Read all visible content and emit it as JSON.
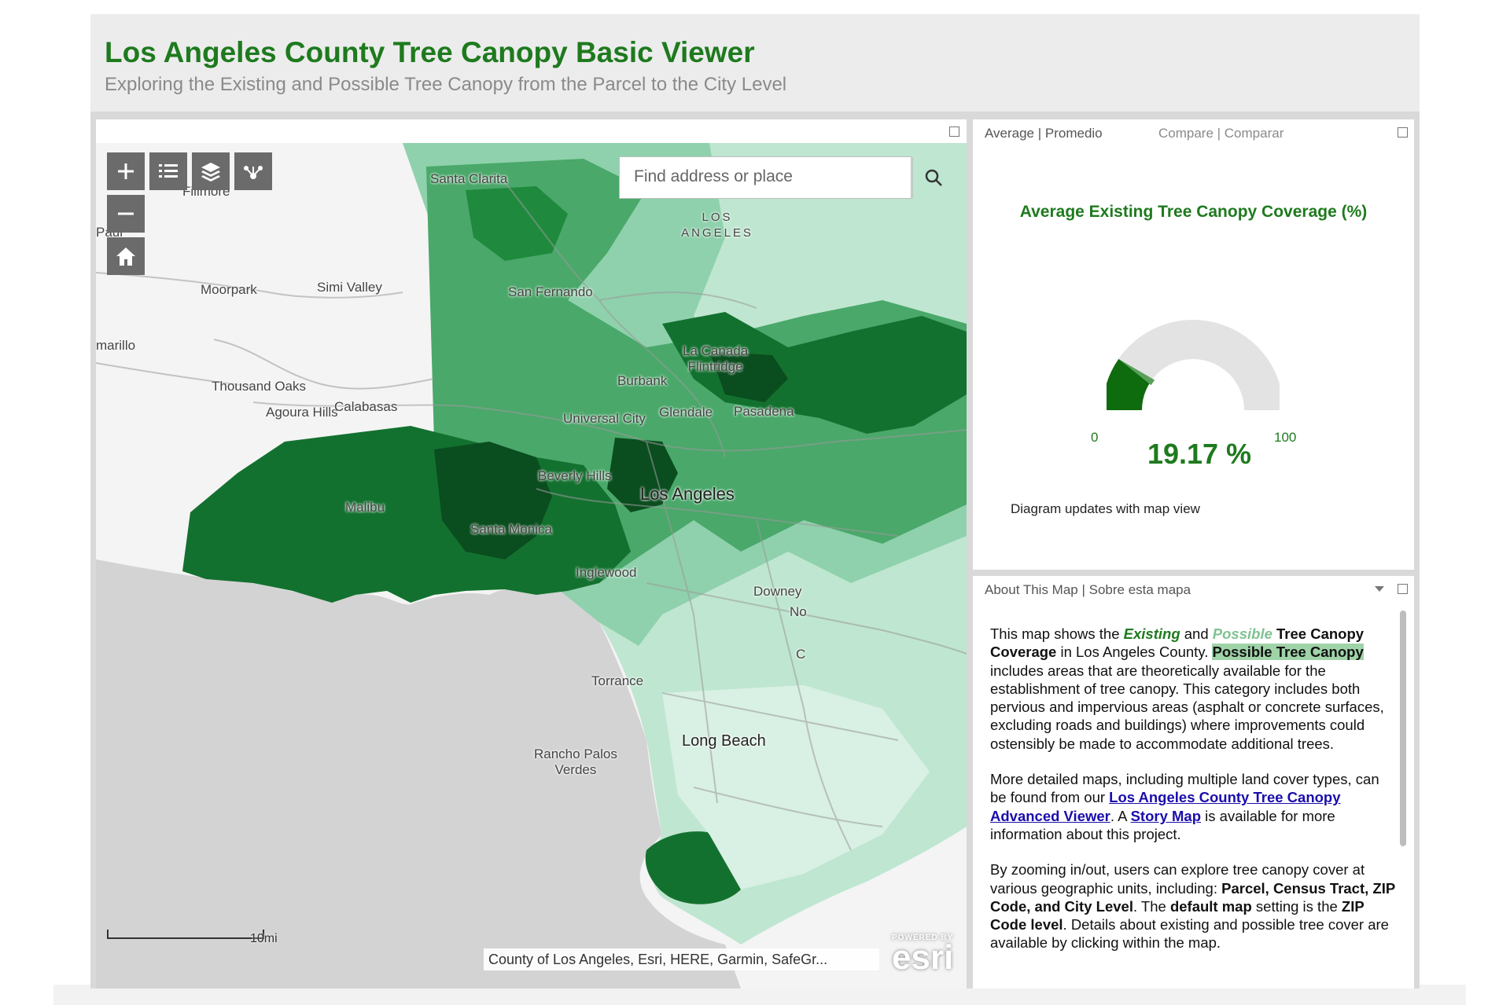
{
  "header": {
    "title": "Los Angeles County Tree Canopy Basic Viewer",
    "subtitle": "Exploring the Existing and Possible Tree Canopy from the Parcel to the City Level"
  },
  "map": {
    "search_placeholder": "Find address or place",
    "places": {
      "santa_clarita": "Santa Clarita",
      "fillmore": "Fillmore",
      "paul": "Paul",
      "los_angeles_county_l1": "LOS",
      "los_angeles_county_l2": "ANGELES",
      "moorpark": "Moorpark",
      "simi_valley": "Simi Valley",
      "san_fernando": "San Fernando",
      "camarillo": "marillo",
      "thousand_oaks": "Thousand Oaks",
      "la_canada_l1": "La Canada",
      "la_canada_l2": "Flintridge",
      "burbank": "Burbank",
      "agoura_hills": "Agoura Hills",
      "calabasas": "Calabasas",
      "universal_city": "Universal City",
      "glendale": "Glendale",
      "pasadena": "Pasadena",
      "beverly_hills": "Beverly Hills",
      "los_angeles": "Los Angeles",
      "malibu": "Malibu",
      "santa_monica": "Santa Monica",
      "inglewood": "Inglewood",
      "downey": "Downey",
      "norwalk": "No",
      "cerritos": "C",
      "torrance": "Torrance",
      "long_beach": "Long Beach",
      "rancho_l1": "Rancho Palos",
      "rancho_l2": "Verdes"
    },
    "scale_label": "10mi",
    "attribution": "County of Los Angeles, Esri, HERE, Garmin, SafeGr...",
    "esri": {
      "powered_by": "POWERED BY",
      "logo": "esri"
    },
    "colors": {
      "dark": "#0c5a24",
      "mid": "#2e8b4a",
      "light": "#6cc08a",
      "pale": "#a9dcc0",
      "faint": "#d6efe3",
      "ocean": "#d3d3d3",
      "land": "#f4f4f4"
    }
  },
  "gauge": {
    "tab_average": "Average | Promedio",
    "tab_compare": "Compare | Comparar",
    "title": "Average Existing Tree Canopy Coverage (%)",
    "min": "0",
    "max": "100",
    "value": 19.17,
    "value_label": "19.17 %",
    "note": "Diagram updates with map view",
    "colors": {
      "fill": "#0e6b0e",
      "track": "#e3e3e3",
      "needle": "#5aa05a"
    }
  },
  "about": {
    "panel_title": "About This Map | Sobre esta mapa",
    "p1": {
      "t1": "This map shows the ",
      "existing": "Existing",
      "t2": " and ",
      "possible": "Possible",
      "t3": " Tree Canopy Coverage",
      "t4": " in Los Angeles County. ",
      "highlight": "Possible Tree Canopy",
      "t5": " includes areas that are theoretically available for the establishment of tree canopy. This category includes both pervious and impervious areas (asphalt or concrete surfaces, excluding roads and buildings) where improvements could ostensibly be made to accommodate additional trees."
    },
    "p2": {
      "t1": "More detailed maps, including multiple land cover types, can be found from our ",
      "link1": "Los Angeles County Tree Canopy Advanced Viewer",
      "t2": ". A ",
      "link2": "Story Map",
      "t3": " is available for more information about this project."
    },
    "p3": {
      "t1": "By zooming in/out, users can explore tree canopy cover at various geographic units, including: ",
      "b1": "Parcel, Census Tract, ZIP Code, and City Level",
      "t2": ". The ",
      "b2": "default map",
      "t3": " setting is the ",
      "b3": "ZIP Code level",
      "t4": ". Details about existing and possible tree cover are available by clicking within the map."
    }
  }
}
